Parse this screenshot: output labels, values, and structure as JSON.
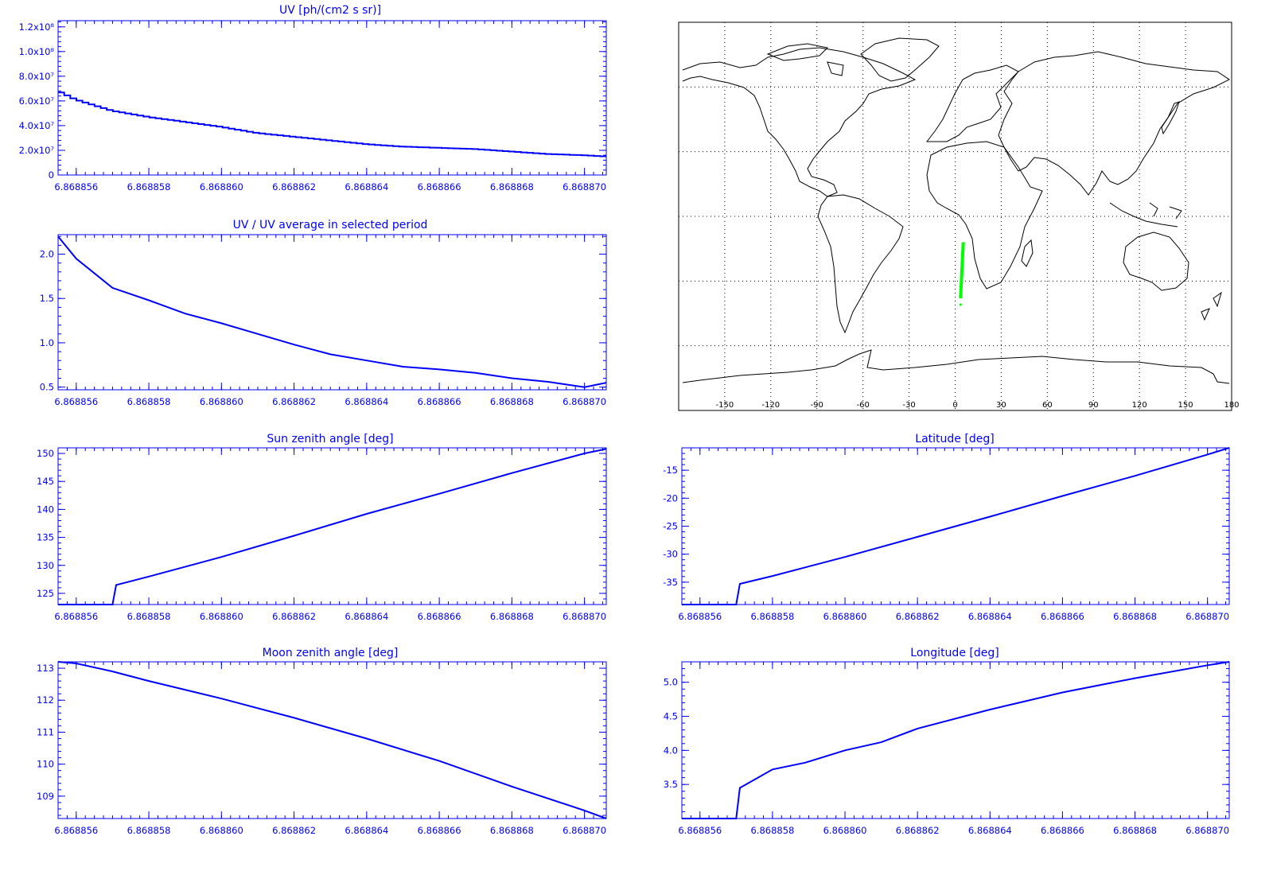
{
  "colors": {
    "axis": "#0000ff",
    "line": "#0000ff",
    "map": "#000000",
    "track": "#00ff00",
    "background": "#ffffff"
  },
  "chart_data": [
    {
      "id": "uv",
      "type": "line",
      "style": "step",
      "title": "UV [ph/(cm2 s sr)]",
      "xlabel": "",
      "ylabel": "",
      "xlim": [
        6.8688555,
        6.8688706
      ],
      "ylim": [
        0,
        125000000
      ],
      "xticks": [
        "6.868856",
        "6.868858",
        "6.868860",
        "6.868862",
        "6.868864",
        "6.868866",
        "6.868868",
        "6.868870"
      ],
      "xtick_values": [
        6.868856,
        6.868858,
        6.86886,
        6.868862,
        6.868864,
        6.868866,
        6.868868,
        6.86887
      ],
      "yticks": [
        "0",
        "2.0x10⁷",
        "4.0x10⁷",
        "6.0x10⁷",
        "8.0x10⁷",
        "1.0x10⁸",
        "1.2x10⁸"
      ],
      "ytick_values": [
        0,
        20000000,
        40000000,
        60000000,
        80000000,
        100000000,
        120000000
      ],
      "series": [
        {
          "x": [
            6.8688555,
            6.868856,
            6.868857,
            6.868858,
            6.868859,
            6.86886,
            6.868861,
            6.868862,
            6.868863,
            6.868864,
            6.868865,
            6.868866,
            6.868867,
            6.868868,
            6.868869,
            6.86887,
            6.8688706
          ],
          "y": [
            68000000,
            61000000,
            52000000,
            47000000,
            43000000,
            39000000,
            34000000,
            31000000,
            28000000,
            25000000,
            23000000,
            22000000,
            21000000,
            19000000,
            17000000,
            16000000,
            15000000
          ]
        }
      ]
    },
    {
      "id": "uv_ratio",
      "type": "line",
      "title": "UV / UV average in selected period",
      "xlabel": "",
      "ylabel": "",
      "xlim": [
        6.8688555,
        6.8688706
      ],
      "ylim": [
        0.47,
        2.22
      ],
      "xticks": [
        "6.868856",
        "6.868858",
        "6.868860",
        "6.868862",
        "6.868864",
        "6.868866",
        "6.868868",
        "6.868870"
      ],
      "xtick_values": [
        6.868856,
        6.868858,
        6.86886,
        6.868862,
        6.868864,
        6.868866,
        6.868868,
        6.86887
      ],
      "yticks": [
        "0.5",
        "1.0",
        "1.5",
        "2.0"
      ],
      "ytick_values": [
        0.5,
        1.0,
        1.5,
        2.0
      ],
      "series": [
        {
          "x": [
            6.8688555,
            6.868856,
            6.868857,
            6.868858,
            6.868859,
            6.86886,
            6.868861,
            6.868862,
            6.868863,
            6.868864,
            6.868865,
            6.868866,
            6.868867,
            6.868868,
            6.868869,
            6.86887,
            6.8688706
          ],
          "y": [
            2.2,
            1.95,
            1.62,
            1.48,
            1.33,
            1.22,
            1.1,
            0.98,
            0.87,
            0.8,
            0.73,
            0.7,
            0.66,
            0.6,
            0.56,
            0.5,
            0.55
          ]
        }
      ]
    },
    {
      "id": "sun_zenith",
      "type": "line",
      "title": "Sun zenith angle [deg]",
      "xlabel": "",
      "ylabel": "",
      "xlim": [
        6.8688555,
        6.8688706
      ],
      "ylim": [
        123,
        151
      ],
      "xticks": [
        "6.868856",
        "6.868858",
        "6.868860",
        "6.868862",
        "6.868864",
        "6.868866",
        "6.868868",
        "6.868870"
      ],
      "xtick_values": [
        6.868856,
        6.868858,
        6.86886,
        6.868862,
        6.868864,
        6.868866,
        6.868868,
        6.86887
      ],
      "yticks": [
        "125",
        "130",
        "135",
        "140",
        "145",
        "150"
      ],
      "ytick_values": [
        125,
        130,
        135,
        140,
        145,
        150
      ],
      "series": [
        {
          "x": [
            6.8688555,
            6.868856,
            6.868857,
            6.8688571,
            6.868858,
            6.86886,
            6.868862,
            6.868864,
            6.868866,
            6.868868,
            6.86887,
            6.8688706
          ],
          "y": [
            123,
            123,
            123,
            126.5,
            128.0,
            131.5,
            135.3,
            139.2,
            142.8,
            146.5,
            150.0,
            150.8
          ]
        }
      ]
    },
    {
      "id": "latitude",
      "type": "line",
      "title": "Latitude [deg]",
      "xlabel": "",
      "ylabel": "",
      "xlim": [
        6.8688555,
        6.8688706
      ],
      "ylim": [
        -39,
        -11
      ],
      "xticks": [
        "6.868856",
        "6.868858",
        "6.868860",
        "6.868862",
        "6.868864",
        "6.868866",
        "6.868868",
        "6.868870"
      ],
      "xtick_values": [
        6.868856,
        6.868858,
        6.86886,
        6.868862,
        6.868864,
        6.868866,
        6.868868,
        6.86887
      ],
      "yticks": [
        "-35",
        "-30",
        "-25",
        "-20",
        "-15"
      ],
      "ytick_values": [
        -35,
        -30,
        -25,
        -20,
        -15
      ],
      "series": [
        {
          "x": [
            6.8688555,
            6.868856,
            6.868857,
            6.8688571,
            6.868858,
            6.86886,
            6.868862,
            6.868864,
            6.868866,
            6.868868,
            6.86887,
            6.8688706
          ],
          "y": [
            -39,
            -39,
            -39,
            -35.3,
            -33.9,
            -30.5,
            -26.9,
            -23.3,
            -19.6,
            -16.0,
            -12.2,
            -11.0
          ]
        }
      ]
    },
    {
      "id": "moon_zenith",
      "type": "line",
      "title": "Moon zenith angle [deg]",
      "xlabel": "",
      "ylabel": "",
      "xlim": [
        6.8688555,
        6.8688706
      ],
      "ylim": [
        108.3,
        113.2
      ],
      "xticks": [
        "6.868856",
        "6.868858",
        "6.868860",
        "6.868862",
        "6.868864",
        "6.868866",
        "6.868868",
        "6.868870"
      ],
      "xtick_values": [
        6.868856,
        6.868858,
        6.86886,
        6.868862,
        6.868864,
        6.868866,
        6.868868,
        6.86887
      ],
      "yticks": [
        "109",
        "110",
        "111",
        "112",
        "113"
      ],
      "ytick_values": [
        109,
        110,
        111,
        112,
        113
      ],
      "series": [
        {
          "x": [
            6.8688555,
            6.868856,
            6.868857,
            6.868858,
            6.86886,
            6.868862,
            6.868864,
            6.868866,
            6.868868,
            6.86887,
            6.8688706
          ],
          "y": [
            113.2,
            113.15,
            112.9,
            112.6,
            112.05,
            111.45,
            110.8,
            110.1,
            109.3,
            108.55,
            108.3
          ]
        }
      ]
    },
    {
      "id": "longitude",
      "type": "line",
      "title": "Longitude [deg]",
      "xlabel": "",
      "ylabel": "",
      "xlim": [
        6.8688555,
        6.8688706
      ],
      "ylim": [
        3.0,
        5.3
      ],
      "xticks": [
        "6.868856",
        "6.868858",
        "6.868860",
        "6.868862",
        "6.868864",
        "6.868866",
        "6.868868",
        "6.868870"
      ],
      "xtick_values": [
        6.868856,
        6.868858,
        6.86886,
        6.868862,
        6.868864,
        6.868866,
        6.868868,
        6.86887
      ],
      "yticks": [
        "3.5",
        "4.0",
        "4.5",
        "5.0"
      ],
      "ytick_values": [
        3.5,
        4.0,
        4.5,
        5.0
      ],
      "series": [
        {
          "x": [
            6.8688555,
            6.868856,
            6.868857,
            6.8688571,
            6.868858,
            6.8688589,
            6.86886,
            6.868861,
            6.868862,
            6.868864,
            6.868866,
            6.868868,
            6.86887,
            6.8688706
          ],
          "y": [
            3.0,
            3.0,
            3.0,
            3.45,
            3.72,
            3.82,
            4.0,
            4.12,
            4.32,
            4.6,
            4.85,
            5.06,
            5.25,
            5.3
          ]
        }
      ]
    }
  ],
  "map": {
    "projection": "cylindrical",
    "lon_range": [
      -180,
      180
    ],
    "lat_range": [
      -90,
      90
    ],
    "lon_ticks": [
      "-150",
      "-120",
      "-90",
      "-60",
      "-30",
      "0",
      "30",
      "60",
      "90",
      "120",
      "150",
      "180"
    ],
    "lon_tick_values": [
      -150,
      -120,
      -90,
      -60,
      -30,
      0,
      30,
      60,
      90,
      120,
      150,
      180
    ],
    "grid_lats": [
      -60,
      -30,
      0,
      30,
      60
    ],
    "grid_lons": [
      -150,
      -120,
      -90,
      -60,
      -30,
      0,
      30,
      60,
      90,
      120,
      150
    ],
    "track": {
      "lon": [
        3.5,
        5.3
      ],
      "lat": [
        -38,
        -12
      ]
    }
  }
}
